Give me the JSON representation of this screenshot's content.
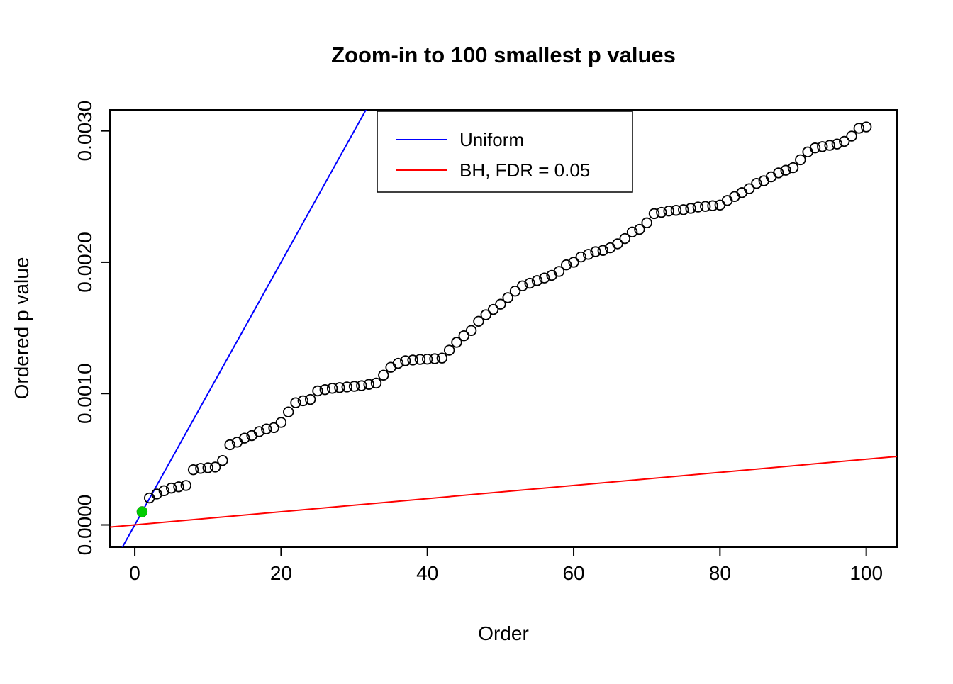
{
  "chart_data": {
    "type": "scatter",
    "title": "Zoom-in to 100 smallest p values",
    "xlabel": "Order",
    "ylabel": "Ordered p value",
    "xlim": [
      -3.4,
      104.2
    ],
    "ylim": [
      -0.00017,
      0.00316
    ],
    "x_tick_values": [
      0,
      20,
      40,
      60,
      80,
      100
    ],
    "x_tick_labels": [
      "0",
      "20",
      "40",
      "60",
      "80",
      "100"
    ],
    "y_tick_values": [
      0,
      0.001,
      0.002,
      0.003
    ],
    "y_tick_labels": [
      "0.0000",
      "0.0010",
      "0.0020",
      "0.0030"
    ],
    "grid": false,
    "point_style": "open-circle",
    "legend": {
      "position": "top-inside",
      "entries": [
        {
          "label": "Uniform",
          "color": "#0000FF"
        },
        {
          "label": "BH, FDR = 0.05",
          "color": "#FF0000"
        }
      ]
    },
    "lines": {
      "uniform": {
        "name": "Uniform",
        "slope": 0.0001,
        "intercept": 0,
        "color": "#0000FF"
      },
      "bh": {
        "name": "BH, FDR = 0.05",
        "slope": 5e-06,
        "intercept": 0,
        "color": "#FF0000"
      }
    },
    "values_note": "ordered p-values for orders 1..100",
    "values": [
      0.0001,
      0.000205,
      0.000235,
      0.00026,
      0.00028,
      0.00029,
      0.0003,
      0.00042,
      0.00043,
      0.000435,
      0.00044,
      0.00049,
      0.00061,
      0.00063,
      0.00066,
      0.00068,
      0.00071,
      0.00073,
      0.00074,
      0.00078,
      0.00086,
      0.00093,
      0.000945,
      0.000955,
      0.00102,
      0.00103,
      0.00104,
      0.001045,
      0.00105,
      0.001055,
      0.00106,
      0.00107,
      0.00108,
      0.00114,
      0.0012,
      0.00123,
      0.00125,
      0.001255,
      0.00126,
      0.001262,
      0.001265,
      0.00127,
      0.00133,
      0.00139,
      0.00144,
      0.00148,
      0.00155,
      0.0016,
      0.00164,
      0.00168,
      0.00173,
      0.00178,
      0.00182,
      0.00184,
      0.00186,
      0.00188,
      0.0019,
      0.00193,
      0.00198,
      0.002,
      0.00204,
      0.00206,
      0.00208,
      0.00209,
      0.00211,
      0.00214,
      0.00218,
      0.00223,
      0.00225,
      0.0023,
      0.00237,
      0.00238,
      0.00239,
      0.002395,
      0.0024,
      0.00241,
      0.00242,
      0.002425,
      0.00243,
      0.002435,
      0.00247,
      0.0025,
      0.00253,
      0.00256,
      0.0026,
      0.00262,
      0.00265,
      0.00268,
      0.0027,
      0.00272,
      0.00278,
      0.00284,
      0.00287,
      0.00288,
      0.00289,
      0.0029,
      0.00292,
      0.00296,
      0.00302,
      0.00303
    ],
    "highlight": {
      "order": 1,
      "value": 0.0001,
      "color": "#00CC00"
    }
  }
}
